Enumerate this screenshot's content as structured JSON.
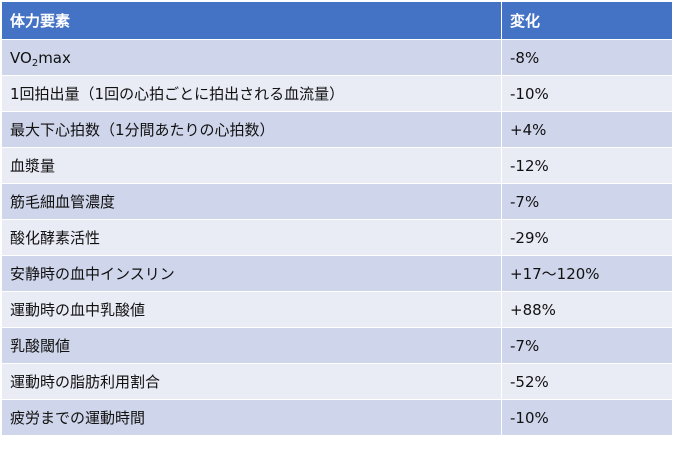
{
  "table": {
    "headers": [
      "体力要素",
      "変化"
    ],
    "rows": [
      {
        "factor_prefix": "VO",
        "factor_sub": "2",
        "factor_suffix": "max",
        "change": "-8%"
      },
      {
        "factor": "1回拍出量（1回の心拍ごとに拍出される血流量）",
        "change": "-10%"
      },
      {
        "factor": "最大下心拍数（1分間あたりの心拍数）",
        "change": "+4%"
      },
      {
        "factor": "血漿量",
        "change": "-12%"
      },
      {
        "factor": "筋毛細血管濃度",
        "change": "-7%"
      },
      {
        "factor": "酸化酵素活性",
        "change": "-29%"
      },
      {
        "factor": "安静時の血中インスリン",
        "change": "+17〜120%"
      },
      {
        "factor": "運動時の血中乳酸値",
        "change": "+88%"
      },
      {
        "factor": "乳酸閾値",
        "change": "-7%"
      },
      {
        "factor": "運動時の脂肪利用割合",
        "change": "-52%"
      },
      {
        "factor": "疲労までの運動時間",
        "change": "-10%"
      }
    ]
  }
}
